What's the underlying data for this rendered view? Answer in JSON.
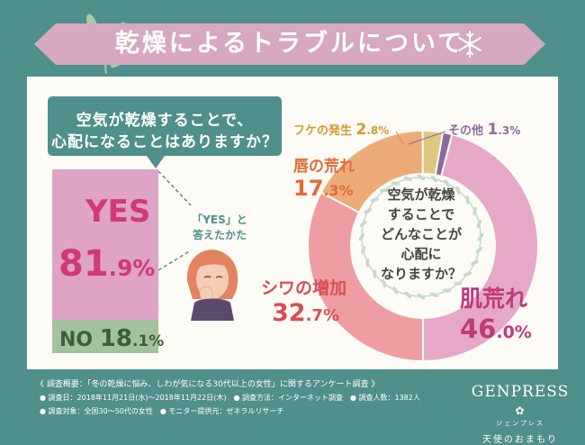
{
  "header": {
    "title": "乾燥によるトラブルについて"
  },
  "question": {
    "line1": "空気が乾燥することで、",
    "line2": "心配になることはありますか？"
  },
  "yes_no": {
    "yes_label": "YES",
    "yes_int": "81",
    "yes_dec": ".9%",
    "no_label": "NO ",
    "no_int": "18",
    "no_dec": ".1%",
    "note_line1": "「YES」と",
    "note_line2": "答えたかた"
  },
  "donut": {
    "center_line1": "空気が乾燥",
    "center_line2": "することで",
    "center_line3": "どんなことが",
    "center_line4": "心配に",
    "center_line5": "なりますか？"
  },
  "labels": {
    "hadaare_name": "肌荒れ",
    "hadaare_int": "46",
    "hadaare_dec": ".0%",
    "shiwa_name": "シワの増加",
    "shiwa_int": "32",
    "shiwa_dec": ".7%",
    "kuchibiru_name": "唇の荒れ",
    "kuchibiru_int": "17",
    "kuchibiru_dec": ".3%",
    "fuke_name": "フケの発生 ",
    "fuke_int": "2",
    "fuke_dec": ".8%",
    "sonota_name": "その他 ",
    "sonota_int": "1",
    "sonota_dec": ".3%"
  },
  "chart_data": [
    {
      "type": "bar",
      "categories": [
        "YES",
        "NO"
      ],
      "values": [
        81.9,
        18.1
      ],
      "title": "空気が乾燥することで、心配になることはありますか？"
    },
    {
      "type": "pie",
      "categories": [
        "肌荒れ",
        "シワの増加",
        "唇の荒れ",
        "フケの発生",
        "その他"
      ],
      "values": [
        46.0,
        32.7,
        17.3,
        2.8,
        1.3
      ],
      "colors": [
        "#e6a8c8",
        "#ee9ea2",
        "#ecab78",
        "#dcc880",
        "#8b6c98"
      ],
      "title": "空気が乾燥することでどんなことが心配になりますか？"
    }
  ],
  "footer": {
    "line1": "《 調査概要：「冬の乾燥に悩み、しわが気になる30代以上の女性」に関するアンケート調査 》",
    "line2": "● 調査日：2018年11月21日(水)～2018年11月22日(木)　● 調査方法：インターネット調査　● 調査人数：1382人",
    "line3": "● 調査対象：全国30～50代の女性　● モニター提供元：ゼネラルリサーチ",
    "brand": "GENPRESS",
    "brand_kana": "ジェンプレス",
    "brand_sub": "天使のおまもり"
  },
  "colors": {
    "teal": "#4f8f8c",
    "pink": "#d1387a",
    "banner": "#d6a8c1"
  }
}
